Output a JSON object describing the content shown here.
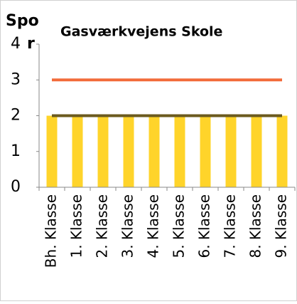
{
  "chart_data": {
    "type": "bar",
    "title": "Gasværkvejens Skole",
    "y_label": "Spo",
    "annotation": "r",
    "categories": [
      "Bh. Klasse",
      "1. Klasse",
      "2. Klasse",
      "3. Klasse",
      "4. Klasse",
      "5. Klasse",
      "6. Klasse",
      "7. Klasse",
      "8. Klasse",
      "9. Klasse"
    ],
    "series": [
      {
        "type": "bar",
        "color": "#FFD42A",
        "values": [
          2,
          2,
          2,
          2,
          2,
          2,
          2,
          2,
          2,
          2
        ]
      },
      {
        "type": "line",
        "color": "#F26B3A",
        "values": [
          3,
          3,
          3,
          3,
          3,
          3,
          3,
          3,
          3,
          3
        ]
      },
      {
        "type": "line",
        "color": "#6B5A1E",
        "values": [
          2,
          2,
          2,
          2,
          2,
          2,
          2,
          2,
          2,
          2
        ]
      }
    ],
    "ylim": [
      0,
      4
    ],
    "yticks": [
      0,
      1,
      2,
      3,
      4
    ],
    "grid": false
  }
}
